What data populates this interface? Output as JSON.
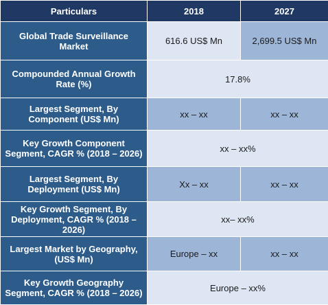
{
  "colors": {
    "header": "#1f3864",
    "label_cell": "#2e5c8a",
    "value_light": "#dde6f2",
    "value_mid": "#9db6d8",
    "label_text": "#ffffff",
    "value_text": "#1a1a1a"
  },
  "chart_data": {
    "type": "table",
    "columns": [
      "Particulars",
      "2018",
      "2027"
    ],
    "rows": [
      {
        "label": "Global Trade Surveillance Market",
        "v2018": "616.6 US$ Mn",
        "v2027": "2,699.5 US$ Mn"
      },
      {
        "label": "Compounded Annual Growth Rate (%)",
        "value": "17.8%"
      },
      {
        "label": "Largest Segment, By Component (US$ Mn)",
        "v2018": "xx – xx",
        "v2027": "xx – xx"
      },
      {
        "label": "Key Growth Component Segment, CAGR % (2018 – 2026)",
        "value": "xx – xx%"
      },
      {
        "label": "Largest Segment, By Deployment (US$ Mn)",
        "v2018": "Xx – xx",
        "v2027": "xx – xx"
      },
      {
        "label": "Key Growth Segment, By Deployment, CAGR % (2018 – 2026)",
        "value": "xx– xx%"
      },
      {
        "label": "Largest Market by Geography, (US$ Mn)",
        "v2018": "Europe – xx",
        "v2027": "xx – xx"
      },
      {
        "label": "Key Growth Geography Segment, CAGR % (2018 – 2026)",
        "value": "Europe – xx%"
      }
    ]
  }
}
